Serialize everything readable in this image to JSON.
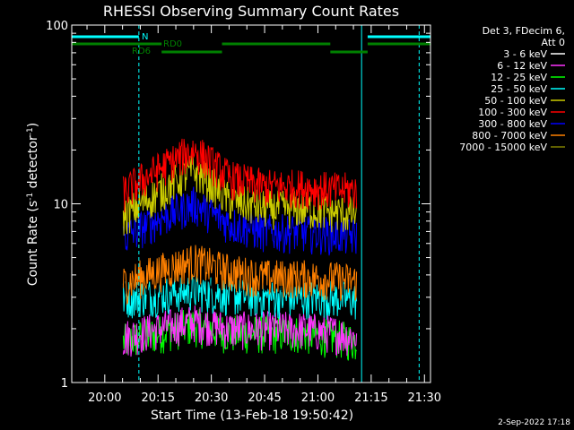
{
  "chart_data": {
    "type": "line",
    "title": "RHESSI Observing Summary Count Rates",
    "xlabel": "Start Time (13-Feb-18 19:50:42)",
    "ylabel_main": "Count Rate (s",
    "ylabel_sup1": "-1",
    "ylabel_mid": " detector",
    "ylabel_sup2": "-1",
    "ylabel_end": ")",
    "yscale": "log",
    "ylim": [
      1,
      100
    ],
    "xlim_minutes": [
      -9.3,
      91.7
    ],
    "x_tick_labels": [
      {
        "m": 0,
        "label": "20:00"
      },
      {
        "m": 15,
        "label": "20:15"
      },
      {
        "m": 30,
        "label": "20:30"
      },
      {
        "m": 45,
        "label": "20:45"
      },
      {
        "m": 60,
        "label": "21:00"
      },
      {
        "m": 75,
        "label": "21:15"
      },
      {
        "m": 90,
        "label": "21:30"
      }
    ],
    "y_tick_labels": [
      {
        "v": 1,
        "label": "1"
      },
      {
        "v": 10,
        "label": "10"
      },
      {
        "v": 100,
        "label": "100"
      }
    ],
    "legend_header": [
      "Det 3, FDecim 6,",
      "Att 0"
    ],
    "series": [
      {
        "name": "3 - 6 keV",
        "color": "#000000",
        "values": [
          [
            5.2,
            3.8
          ],
          [
            15,
            4.0
          ],
          [
            25,
            4.5
          ],
          [
            35,
            4.3
          ],
          [
            45,
            4.0
          ],
          [
            55,
            4.1
          ],
          [
            65,
            4.0
          ],
          [
            71,
            3.8
          ]
        ]
      },
      {
        "name": "6 - 12 keV",
        "color": "#ff33ff",
        "values": [
          [
            5.2,
            1.8
          ],
          [
            15,
            2.0
          ],
          [
            25,
            2.2
          ],
          [
            35,
            2.0
          ],
          [
            45,
            2.0
          ],
          [
            55,
            2.0
          ],
          [
            65,
            1.9
          ],
          [
            71,
            1.8
          ]
        ]
      },
      {
        "name": "12 - 25 keV",
        "color": "#00ff00",
        "values": [
          [
            5.2,
            1.7
          ],
          [
            15,
            1.9
          ],
          [
            25,
            2.1
          ],
          [
            35,
            1.9
          ],
          [
            45,
            1.9
          ],
          [
            55,
            1.9
          ],
          [
            65,
            1.8
          ],
          [
            71,
            1.7
          ]
        ]
      },
      {
        "name": "25 - 50 keV",
        "color": "#00ffff",
        "values": [
          [
            5.2,
            3.0
          ],
          [
            15,
            3.1
          ],
          [
            25,
            3.3
          ],
          [
            35,
            3.1
          ],
          [
            45,
            3.0
          ],
          [
            55,
            3.0
          ],
          [
            65,
            3.0
          ],
          [
            71,
            2.9
          ]
        ]
      },
      {
        "name": "50 - 100 keV",
        "color": "#cccc00",
        "values": [
          [
            5.2,
            8.5
          ],
          [
            15,
            11.5
          ],
          [
            25,
            15.5
          ],
          [
            35,
            10.5
          ],
          [
            45,
            9.5
          ],
          [
            55,
            9.5
          ],
          [
            65,
            9.0
          ],
          [
            71,
            8.8
          ]
        ]
      },
      {
        "name": "100 - 300 keV",
        "color": "#ff0000",
        "values": [
          [
            5.2,
            11.5
          ],
          [
            15,
            15.5
          ],
          [
            25,
            20.0
          ],
          [
            35,
            14.0
          ],
          [
            45,
            12.5
          ],
          [
            55,
            12.5
          ],
          [
            65,
            12.0
          ],
          [
            71,
            12.0
          ]
        ]
      },
      {
        "name": "300 - 800 keV",
        "color": "#0000ff",
        "values": [
          [
            5.2,
            6.5
          ],
          [
            15,
            8.2
          ],
          [
            25,
            10.0
          ],
          [
            35,
            7.8
          ],
          [
            45,
            7.0
          ],
          [
            55,
            7.0
          ],
          [
            65,
            6.8
          ],
          [
            71,
            6.6
          ]
        ]
      },
      {
        "name": "800 - 7000 keV",
        "color": "#ff8000",
        "values": [
          [
            5.2,
            3.6
          ],
          [
            15,
            4.2
          ],
          [
            25,
            4.8
          ],
          [
            35,
            4.2
          ],
          [
            45,
            3.9
          ],
          [
            55,
            3.9
          ],
          [
            65,
            3.8
          ],
          [
            71,
            3.7
          ]
        ]
      },
      {
        "name": "7000 - 15000 keV",
        "color": "#808000",
        "values": []
      }
    ],
    "annotations": {
      "bars": [
        {
          "label": "N",
          "color": "#00ffff",
          "segments": [
            [
              -9.3,
              9.6
            ],
            [
              74.0,
              91.7
            ]
          ]
        },
        {
          "label": "RD0",
          "color": "#008000",
          "segments": [
            [
              -9.3,
              16.0
            ],
            [
              33.0,
              63.5
            ],
            [
              74.0,
              91.7
            ]
          ]
        },
        {
          "label": "RD6",
          "color": "#008000",
          "segments": [
            [
              16.0,
              33.0
            ],
            [
              63.5,
              74.0
            ]
          ]
        }
      ],
      "vlines": [
        {
          "m": 9.6,
          "color": "#00ffff",
          "style": "dashed"
        },
        {
          "m": 72.3,
          "color": "#00ffff",
          "style": "solid"
        },
        {
          "m": 88.5,
          "color": "#00ffff",
          "style": "dashed"
        },
        {
          "m": -9.3,
          "color": "#00ffff",
          "style": "solid"
        }
      ]
    }
  },
  "footer": {
    "date": "2-Sep-2022 17:18"
  }
}
